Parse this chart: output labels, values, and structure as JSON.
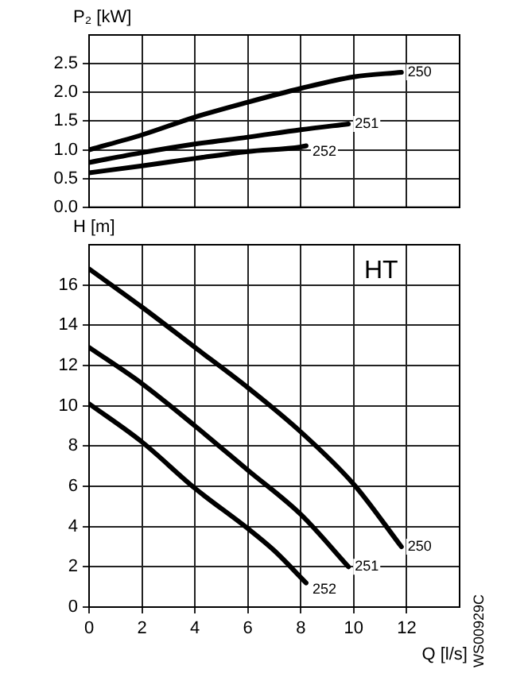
{
  "chart_data": [
    {
      "type": "line",
      "ylabel": "P₂ [kW]",
      "xlim": [
        0,
        14
      ],
      "xticks": [
        0,
        2,
        4,
        6,
        8,
        10,
        12
      ],
      "ylim": [
        0,
        3
      ],
      "yticks": [
        {
          "value": 0,
          "label": "0.0"
        },
        0.5,
        {
          "value": 1,
          "label": "1.0"
        },
        1.5,
        {
          "value": 2,
          "label": "2.0"
        },
        2.5
      ],
      "tick_labels": "y",
      "grid": true,
      "legend": false,
      "marker": "none",
      "line_style": "solid",
      "series": [
        {
          "name": "250",
          "color": "#000000",
          "x": [
            0,
            2,
            4,
            6,
            8,
            10,
            11.8
          ],
          "values": [
            1.0,
            1.26,
            1.57,
            1.83,
            2.07,
            2.27,
            2.35
          ]
        },
        {
          "name": "251",
          "color": "#000000",
          "x": [
            0,
            2,
            4,
            6,
            8,
            9.8
          ],
          "values": [
            0.78,
            0.95,
            1.1,
            1.22,
            1.35,
            1.45
          ]
        },
        {
          "name": "252",
          "color": "#000000",
          "x": [
            0,
            2,
            4,
            6,
            8,
            8.2
          ],
          "values": [
            0.6,
            0.72,
            0.85,
            0.97,
            1.05,
            1.07
          ]
        }
      ]
    },
    {
      "type": "line",
      "xlabel": "Q [l/s]",
      "ylabel": "H [m]",
      "annotations": [
        "HT",
        "WS00929C"
      ],
      "xlim": [
        0,
        14
      ],
      "xticks": [
        0,
        2,
        4,
        6,
        8,
        10,
        12
      ],
      "ylim": [
        0,
        18
      ],
      "yticks": [
        0,
        2,
        4,
        6,
        8,
        10,
        12,
        14,
        16
      ],
      "grid": true,
      "legend": false,
      "marker": "none",
      "line_style": "solid",
      "series": [
        {
          "name": "250",
          "color": "#000000",
          "x": [
            0,
            2,
            4,
            6,
            8,
            10,
            11.8
          ],
          "values": [
            16.8,
            14.9,
            12.9,
            10.9,
            8.7,
            6.1,
            3.0
          ]
        },
        {
          "name": "251",
          "color": "#000000",
          "x": [
            0,
            2,
            4,
            6,
            8,
            9.8
          ],
          "values": [
            12.9,
            11.1,
            9.0,
            6.8,
            4.6,
            2.0
          ]
        },
        {
          "name": "252",
          "color": "#000000",
          "x": [
            0,
            2,
            4,
            6,
            7,
            8.2
          ],
          "values": [
            10.1,
            8.2,
            5.9,
            3.9,
            2.8,
            1.2
          ]
        }
      ]
    }
  ]
}
